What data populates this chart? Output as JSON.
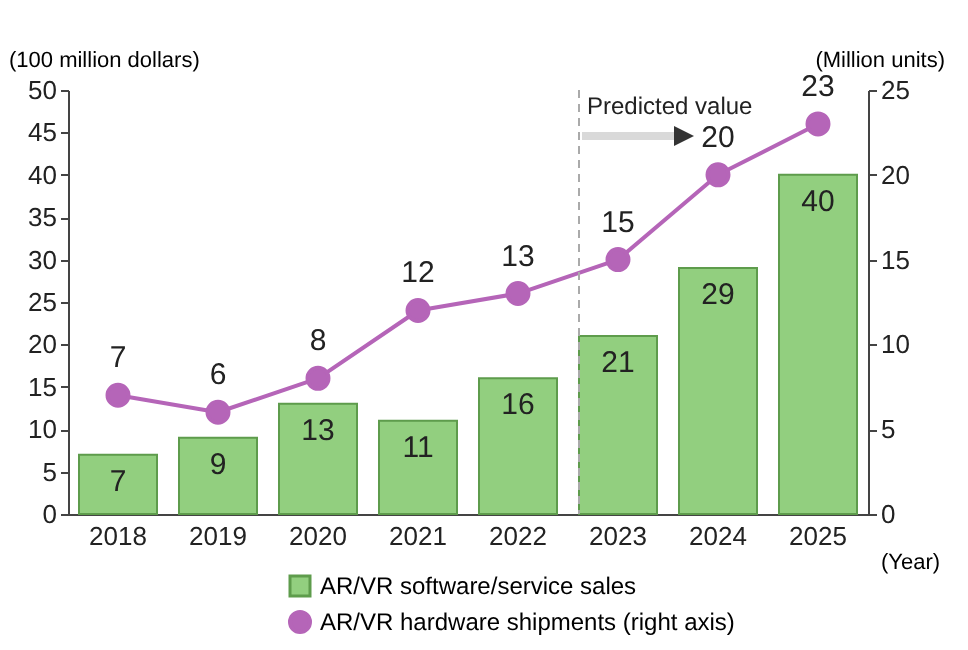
{
  "chart_data": {
    "type": "bar",
    "categories": [
      "2018",
      "2019",
      "2020",
      "2021",
      "2022",
      "2023",
      "2024",
      "2025"
    ],
    "xlabel": "(Year)",
    "ylabel": "(100 million dollars)",
    "y2label": "(Million units)",
    "series": [
      {
        "name": "AR/VR software/service sales",
        "color": "#92cf7f",
        "values": [
          7,
          9,
          13,
          11,
          16,
          21,
          29,
          40
        ]
      },
      {
        "name": "AR/VR hardware shipments (right axis)",
        "type": "line",
        "axis": "y2",
        "color": "#b565b8",
        "values": [
          7,
          6,
          8,
          12,
          13,
          15,
          20,
          23
        ]
      }
    ],
    "ylim": [
      0,
      50
    ],
    "yticks": [
      0,
      5,
      10,
      15,
      20,
      25,
      30,
      35,
      40,
      45,
      50
    ],
    "y2lim": [
      0,
      25
    ],
    "y2ticks": [
      0,
      5,
      10,
      15,
      20,
      25
    ],
    "ref_lines": [
      {
        "axis": "x",
        "value": "2023",
        "label": "Predicted value",
        "color": "#aaaaaa",
        "line_style": "dashed"
      }
    ],
    "data_labels": true,
    "marker": "circle",
    "line_style": "solid",
    "grid": false,
    "legend": "bottom"
  }
}
